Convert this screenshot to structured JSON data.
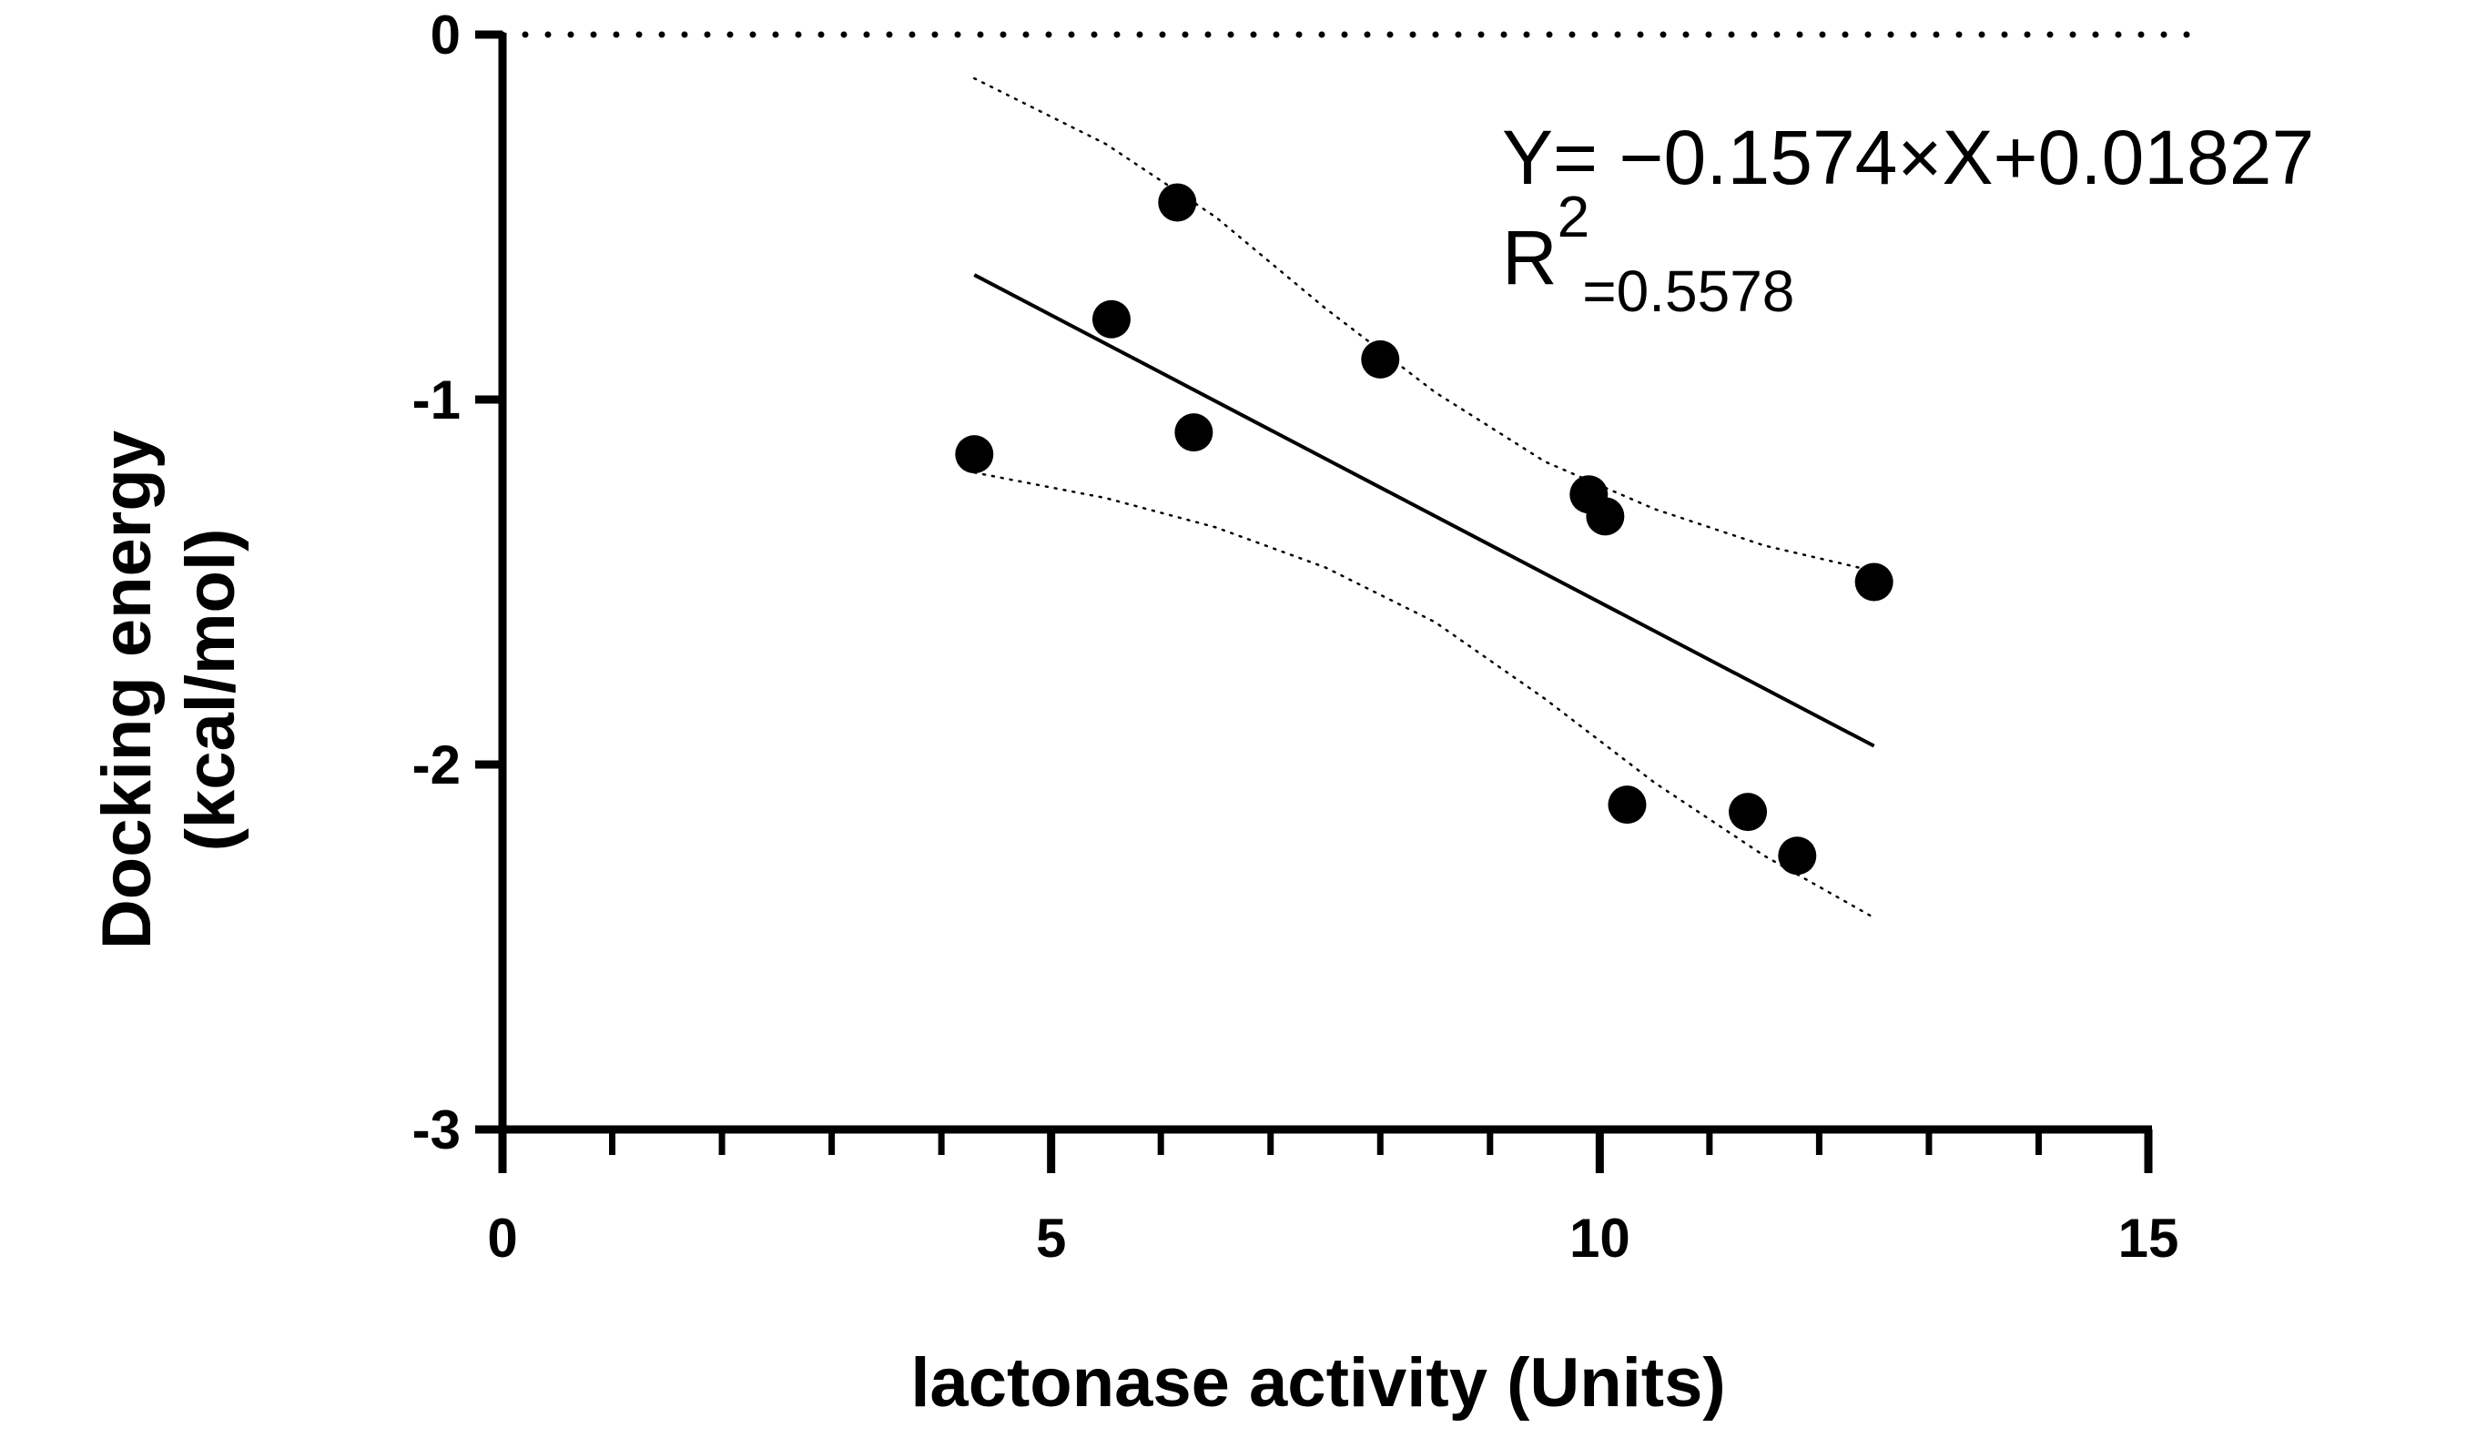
{
  "chart_data": {
    "type": "scatter",
    "title": "",
    "xlabel": "lactonase activity (Units)",
    "ylabel_line1": "Docking energy",
    "ylabel_line2": "(kcal/mol)",
    "xlim": [
      0,
      15
    ],
    "ylim": [
      -3,
      0
    ],
    "x_major_ticks": [
      0,
      5,
      10,
      15
    ],
    "x_major_tick_labels": [
      "0",
      "5",
      "10",
      "15"
    ],
    "x_minor_ticks": [
      1,
      2,
      3,
      4,
      6,
      7,
      8,
      9,
      11,
      12,
      13,
      14
    ],
    "y_major_ticks": [
      0,
      -1,
      -2,
      -3
    ],
    "y_major_tick_labels": [
      "0",
      "-1",
      "-2",
      "-3"
    ],
    "grid": false,
    "points": [
      {
        "x": 4.3,
        "y": -1.15
      },
      {
        "x": 5.55,
        "y": -0.78
      },
      {
        "x": 6.15,
        "y": -0.46
      },
      {
        "x": 6.3,
        "y": -1.09
      },
      {
        "x": 8.0,
        "y": -0.89
      },
      {
        "x": 9.9,
        "y": -1.26
      },
      {
        "x": 10.05,
        "y": -1.32
      },
      {
        "x": 10.25,
        "y": -2.11
      },
      {
        "x": 11.35,
        "y": -2.13
      },
      {
        "x": 11.8,
        "y": -2.25
      },
      {
        "x": 12.5,
        "y": -1.5
      }
    ],
    "regression": {
      "slope": -0.1574,
      "intercept": 0.01827,
      "x_range": [
        4.3,
        12.5
      ]
    },
    "confidence_band_upper": [
      {
        "x": 4.3,
        "y": -0.12
      },
      {
        "x": 5.5,
        "y": -0.3
      },
      {
        "x": 6.5,
        "y": -0.5
      },
      {
        "x": 7.5,
        "y": -0.75
      },
      {
        "x": 8.5,
        "y": -0.98
      },
      {
        "x": 9.5,
        "y": -1.17
      },
      {
        "x": 10.5,
        "y": -1.3
      },
      {
        "x": 11.5,
        "y": -1.4
      },
      {
        "x": 12.5,
        "y": -1.47
      }
    ],
    "confidence_band_lower": [
      {
        "x": 4.3,
        "y": -1.2
      },
      {
        "x": 5.5,
        "y": -1.27
      },
      {
        "x": 6.5,
        "y": -1.35
      },
      {
        "x": 7.5,
        "y": -1.46
      },
      {
        "x": 8.5,
        "y": -1.61
      },
      {
        "x": 9.5,
        "y": -1.82
      },
      {
        "x": 10.5,
        "y": -2.05
      },
      {
        "x": 11.5,
        "y": -2.25
      },
      {
        "x": 12.5,
        "y": -2.42
      }
    ],
    "reference_line": {
      "y": 0,
      "style": "dotted"
    },
    "equation_text": "Y= −0.1574×X+0.01827",
    "r2_label": "R",
    "r2_superscript": "2",
    "r2_value": "=0.5578"
  },
  "colors": {
    "ink": "#000000",
    "background": "#ffffff"
  }
}
